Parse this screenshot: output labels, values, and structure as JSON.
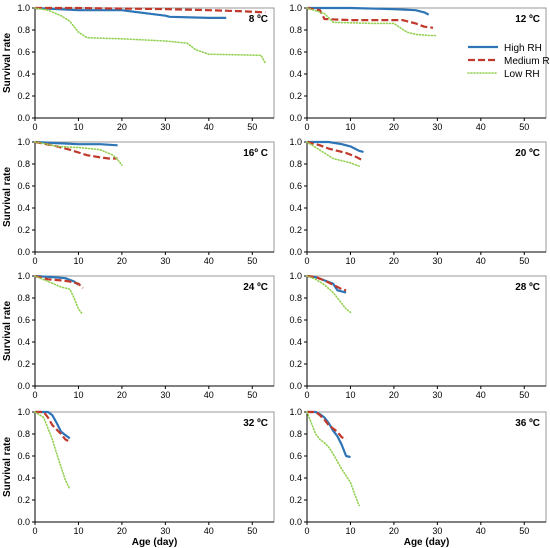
{
  "colors": {
    "high": "#2e75b6",
    "medium": "#c0392b",
    "low": "#92d050",
    "axis": "#000000",
    "frame": "#808080"
  },
  "chart_data": [
    {
      "type": "line",
      "title": "8 ºC",
      "xlabel": "",
      "ylabel": "Survival rate",
      "xlim": [
        0,
        55
      ],
      "ylim": [
        0,
        1.0
      ],
      "grid": false,
      "xticks": [
        "0",
        "10",
        "20",
        "30",
        "40",
        "50"
      ],
      "yticks": [
        "0.0",
        "0.2",
        "0.4",
        "0.6",
        "0.8",
        "1.0"
      ],
      "legend": "none",
      "series": [
        {
          "name": "High RH",
          "x": [
            0,
            10,
            20,
            30,
            31,
            40,
            44
          ],
          "y": [
            1.0,
            0.98,
            0.98,
            0.93,
            0.92,
            0.91,
            0.91
          ]
        },
        {
          "name": "Medium RH",
          "x": [
            0,
            10,
            30,
            40,
            48,
            53
          ],
          "y": [
            1.0,
            1.0,
            0.99,
            0.98,
            0.97,
            0.96
          ]
        },
        {
          "name": "Low RH",
          "x": [
            0,
            3,
            6,
            8,
            10,
            12,
            20,
            30,
            35,
            37,
            40,
            52,
            53
          ],
          "y": [
            1.0,
            0.98,
            0.93,
            0.88,
            0.78,
            0.73,
            0.72,
            0.7,
            0.68,
            0.62,
            0.58,
            0.57,
            0.5
          ]
        }
      ]
    },
    {
      "type": "line",
      "title": "12 ºC",
      "xlabel": "",
      "ylabel": "",
      "xlim": [
        0,
        55
      ],
      "ylim": [
        0,
        1.0
      ],
      "grid": false,
      "xticks": [
        "0",
        "10",
        "20",
        "30",
        "40",
        "50"
      ],
      "yticks": [
        "0.0",
        "0.2",
        "0.4",
        "0.6",
        "0.8",
        "1.0"
      ],
      "legend": "right",
      "series": [
        {
          "name": "High RH",
          "x": [
            0,
            10,
            20,
            25,
            27,
            28
          ],
          "y": [
            1.0,
            1.0,
            0.99,
            0.98,
            0.96,
            0.94
          ]
        },
        {
          "name": "Medium RH",
          "x": [
            0,
            3,
            4,
            10,
            20,
            22,
            25,
            27,
            29
          ],
          "y": [
            1.0,
            0.98,
            0.9,
            0.89,
            0.89,
            0.89,
            0.86,
            0.83,
            0.82
          ]
        },
        {
          "name": "Low RH",
          "x": [
            0,
            4,
            6,
            15,
            20,
            23,
            25,
            28,
            30
          ],
          "y": [
            1.0,
            0.95,
            0.87,
            0.86,
            0.86,
            0.78,
            0.76,
            0.75,
            0.75
          ]
        }
      ]
    },
    {
      "type": "line",
      "title": "16º C",
      "xlabel": "",
      "ylabel": "Survival rate",
      "xlim": [
        0,
        55
      ],
      "ylim": [
        0,
        1.0
      ],
      "grid": false,
      "xticks": [
        "0",
        "10",
        "20",
        "30",
        "40",
        "50"
      ],
      "yticks": [
        "0.0",
        "0.2",
        "0.4",
        "0.6",
        "0.8",
        "1.0"
      ],
      "legend": "none",
      "series": [
        {
          "name": "High RH",
          "x": [
            0,
            5,
            10,
            15,
            19
          ],
          "y": [
            1.0,
            0.99,
            0.98,
            0.98,
            0.97
          ]
        },
        {
          "name": "Medium RH",
          "x": [
            0,
            4,
            8,
            12,
            15,
            17,
            19
          ],
          "y": [
            1.0,
            0.97,
            0.93,
            0.88,
            0.86,
            0.85,
            0.85
          ]
        },
        {
          "name": "Low RH",
          "x": [
            0,
            3,
            5,
            10,
            15,
            18,
            19,
            20
          ],
          "y": [
            1.0,
            0.98,
            0.96,
            0.95,
            0.93,
            0.88,
            0.84,
            0.79
          ]
        }
      ]
    },
    {
      "type": "line",
      "title": "20 ºC",
      "xlabel": "",
      "ylabel": "",
      "xlim": [
        0,
        55
      ],
      "ylim": [
        0,
        1.0
      ],
      "grid": false,
      "xticks": [
        "0",
        "10",
        "20",
        "30",
        "40",
        "50"
      ],
      "yticks": [
        "0.0",
        "0.2",
        "0.4",
        "0.6",
        "0.8",
        "1.0"
      ],
      "legend": "none",
      "series": [
        {
          "name": "High RH",
          "x": [
            0,
            5,
            8,
            10,
            12,
            13
          ],
          "y": [
            1.0,
            1.0,
            0.98,
            0.96,
            0.92,
            0.91
          ]
        },
        {
          "name": "Medium RH",
          "x": [
            0,
            3,
            5,
            7,
            9,
            11,
            13
          ],
          "y": [
            1.0,
            0.97,
            0.94,
            0.92,
            0.9,
            0.87,
            0.83
          ]
        },
        {
          "name": "Low RH",
          "x": [
            0,
            2,
            4,
            6,
            8,
            10,
            12
          ],
          "y": [
            1.0,
            0.95,
            0.9,
            0.85,
            0.83,
            0.81,
            0.78
          ]
        }
      ]
    },
    {
      "type": "line",
      "title": "24 ºC",
      "xlabel": "",
      "ylabel": "Survival rate",
      "xlim": [
        0,
        55
      ],
      "ylim": [
        0,
        1.0
      ],
      "grid": false,
      "xticks": [
        "0",
        "10",
        "20",
        "30",
        "40",
        "50"
      ],
      "yticks": [
        "0.0",
        "0.2",
        "0.4",
        "0.6",
        "0.8",
        "1.0"
      ],
      "legend": "none",
      "series": [
        {
          "name": "High RH",
          "x": [
            0,
            4,
            7,
            9,
            10
          ],
          "y": [
            1.0,
            0.99,
            0.98,
            0.95,
            0.92
          ]
        },
        {
          "name": "Medium RH",
          "x": [
            0,
            3,
            6,
            8,
            10,
            11
          ],
          "y": [
            1.0,
            0.97,
            0.96,
            0.95,
            0.93,
            0.89
          ]
        },
        {
          "name": "Low RH",
          "x": [
            0,
            3,
            6,
            8,
            9,
            10,
            11
          ],
          "y": [
            1.0,
            0.95,
            0.9,
            0.88,
            0.8,
            0.7,
            0.65
          ]
        }
      ]
    },
    {
      "type": "line",
      "title": "28 ºC",
      "xlabel": "",
      "ylabel": "",
      "xlim": [
        0,
        55
      ],
      "ylim": [
        0,
        1.0
      ],
      "grid": false,
      "xticks": [
        "0",
        "10",
        "20",
        "30",
        "40",
        "50"
      ],
      "yticks": [
        "0.0",
        "0.2",
        "0.4",
        "0.6",
        "0.8",
        "1.0"
      ],
      "legend": "none",
      "series": [
        {
          "name": "High RH",
          "x": [
            0,
            2,
            4,
            6,
            7,
            8,
            9
          ],
          "y": [
            1.0,
            0.99,
            0.96,
            0.93,
            0.87,
            0.86,
            0.85
          ]
        },
        {
          "name": "Medium RH",
          "x": [
            0,
            2,
            4,
            6,
            8,
            9
          ],
          "y": [
            1.0,
            0.99,
            0.96,
            0.92,
            0.88,
            0.87
          ]
        },
        {
          "name": "Low RH",
          "x": [
            0,
            2,
            4,
            6,
            7,
            8,
            9,
            10
          ],
          "y": [
            1.0,
            0.97,
            0.92,
            0.85,
            0.8,
            0.75,
            0.7,
            0.67
          ]
        }
      ]
    },
    {
      "type": "line",
      "title": "32 ºC",
      "xlabel": "Age (day)",
      "ylabel": "Survival rate",
      "xlim": [
        0,
        55
      ],
      "ylim": [
        0,
        1.0
      ],
      "grid": false,
      "xticks": [
        "0",
        "10",
        "20",
        "30",
        "40",
        "50"
      ],
      "yticks": [
        "0.0",
        "0.2",
        "0.4",
        "0.6",
        "0.8",
        "1.0"
      ],
      "legend": "none",
      "series": [
        {
          "name": "High RH",
          "x": [
            0,
            3,
            4,
            5,
            6,
            7,
            8
          ],
          "y": [
            1.0,
            1.0,
            0.97,
            0.9,
            0.82,
            0.79,
            0.76
          ]
        },
        {
          "name": "Medium RH",
          "x": [
            0,
            2,
            3,
            4,
            5,
            6,
            7,
            8
          ],
          "y": [
            1.0,
            1.0,
            0.95,
            0.88,
            0.84,
            0.8,
            0.75,
            0.73
          ]
        },
        {
          "name": "Low RH",
          "x": [
            0,
            2,
            3,
            4,
            5,
            6,
            7,
            8
          ],
          "y": [
            1.0,
            0.95,
            0.85,
            0.75,
            0.62,
            0.5,
            0.38,
            0.3
          ]
        }
      ]
    },
    {
      "type": "line",
      "title": "36 ºC",
      "xlabel": "Age (day)",
      "ylabel": "",
      "xlim": [
        0,
        55
      ],
      "ylim": [
        0,
        1.0
      ],
      "grid": false,
      "xticks": [
        "0",
        "10",
        "20",
        "30",
        "40",
        "50"
      ],
      "yticks": [
        "0.0",
        "0.2",
        "0.4",
        "0.6",
        "0.8",
        "1.0"
      ],
      "legend": "none",
      "series": [
        {
          "name": "High RH",
          "x": [
            0,
            2,
            3,
            4,
            5,
            6,
            7,
            8,
            9,
            10
          ],
          "y": [
            1.0,
            1.0,
            0.98,
            0.95,
            0.9,
            0.83,
            0.78,
            0.7,
            0.6,
            0.59
          ]
        },
        {
          "name": "Medium RH",
          "x": [
            0,
            2,
            3,
            4,
            5,
            6,
            7,
            8,
            9
          ],
          "y": [
            1.0,
            1.0,
            0.97,
            0.93,
            0.88,
            0.85,
            0.82,
            0.77,
            0.75
          ]
        },
        {
          "name": "Low RH",
          "x": [
            0,
            1,
            2,
            3,
            4,
            5,
            6,
            7,
            8,
            9,
            10,
            11,
            12
          ],
          "y": [
            1.0,
            0.9,
            0.8,
            0.75,
            0.72,
            0.68,
            0.62,
            0.55,
            0.48,
            0.42,
            0.36,
            0.25,
            0.15
          ]
        }
      ]
    }
  ]
}
